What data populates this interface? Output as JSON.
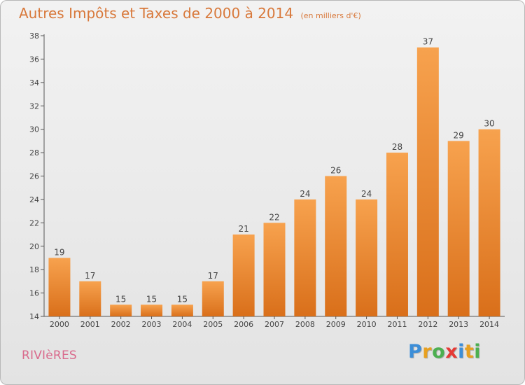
{
  "header": {
    "title": "Autres Impôts et Taxes de 2000 à 2014",
    "subtitle": "(en milliers d'€)"
  },
  "footer": {
    "commune": "RIVIèRES",
    "logo_letters": [
      {
        "char": "P",
        "color": "#3c8ed8"
      },
      {
        "char": "r",
        "color": "#e8a020"
      },
      {
        "char": "o",
        "color": "#4caf50"
      },
      {
        "char": "x",
        "color": "#e53935"
      },
      {
        "char": "i",
        "color": "#3c8ed8"
      },
      {
        "char": "t",
        "color": "#e8a020"
      },
      {
        "char": "i",
        "color": "#4caf50"
      }
    ]
  },
  "colors": {
    "bar_light": "#f7a24e",
    "bar_dark": "#d96f1a",
    "title": "#d8783a",
    "axis": "#555555"
  },
  "chart_data": {
    "type": "bar",
    "categories": [
      "2000",
      "2001",
      "2002",
      "2003",
      "2004",
      "2005",
      "2006",
      "2007",
      "2008",
      "2009",
      "2010",
      "2011",
      "2012",
      "2013",
      "2014"
    ],
    "values": [
      19,
      17,
      15,
      15,
      15,
      17,
      21,
      22,
      24,
      26,
      24,
      28,
      37,
      29,
      30
    ],
    "ylim": [
      14,
      38
    ],
    "yticks": [
      14,
      16,
      18,
      20,
      22,
      24,
      26,
      28,
      30,
      32,
      34,
      36,
      38
    ],
    "grid": false
  }
}
